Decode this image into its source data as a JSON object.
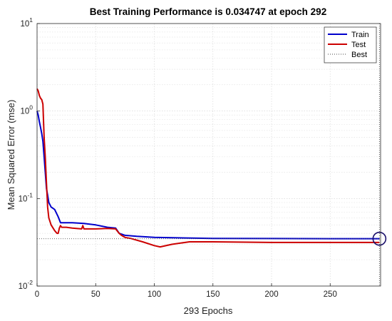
{
  "chart_data": {
    "type": "line",
    "title": "Best Training Performance is 0.034747 at epoch 292",
    "xlabel": "293 Epochs",
    "ylabel": "Mean Squared Error  (mse)",
    "xlim": [
      0,
      293
    ],
    "ylim": [
      0.01,
      10
    ],
    "yscale": "log",
    "grid": true,
    "legend_position": "top-right",
    "x_ticks": [
      0,
      50,
      100,
      150,
      200,
      250
    ],
    "y_ticks": [
      {
        "value": 0.01,
        "base": "10",
        "exp": "-2"
      },
      {
        "value": 0.1,
        "base": "10",
        "exp": "-1"
      },
      {
        "value": 1,
        "base": "10",
        "exp": "0"
      },
      {
        "value": 10,
        "base": "10",
        "exp": "1"
      }
    ],
    "best": {
      "epoch": 292,
      "value": 0.034747
    },
    "series": [
      {
        "name": "Train",
        "color": "#0000cc",
        "points": [
          [
            0,
            1.0
          ],
          [
            1,
            0.9
          ],
          [
            2,
            0.75
          ],
          [
            3,
            0.65
          ],
          [
            4,
            0.55
          ],
          [
            5,
            0.45
          ],
          [
            6,
            0.3
          ],
          [
            7,
            0.2
          ],
          [
            8,
            0.13
          ],
          [
            9,
            0.11
          ],
          [
            10,
            0.09
          ],
          [
            12,
            0.08
          ],
          [
            15,
            0.075
          ],
          [
            18,
            0.062
          ],
          [
            20,
            0.053
          ],
          [
            30,
            0.053
          ],
          [
            40,
            0.052
          ],
          [
            50,
            0.05
          ],
          [
            60,
            0.047
          ],
          [
            67,
            0.046
          ],
          [
            70,
            0.04
          ],
          [
            75,
            0.038
          ],
          [
            85,
            0.037
          ],
          [
            100,
            0.036
          ],
          [
            150,
            0.035
          ],
          [
            200,
            0.0349
          ],
          [
            250,
            0.0348
          ],
          [
            292,
            0.034747
          ]
        ]
      },
      {
        "name": "Test",
        "color": "#cc0000",
        "points": [
          [
            0,
            1.8
          ],
          [
            1,
            1.7
          ],
          [
            2,
            1.5
          ],
          [
            3,
            1.4
          ],
          [
            4,
            1.35
          ],
          [
            5,
            1.2
          ],
          [
            6,
            0.5
          ],
          [
            7,
            0.3
          ],
          [
            8,
            0.15
          ],
          [
            9,
            0.08
          ],
          [
            10,
            0.06
          ],
          [
            12,
            0.05
          ],
          [
            15,
            0.043
          ],
          [
            17,
            0.04
          ],
          [
            18,
            0.04
          ],
          [
            19,
            0.046
          ],
          [
            20,
            0.049
          ],
          [
            21,
            0.047
          ],
          [
            25,
            0.047
          ],
          [
            30,
            0.046
          ],
          [
            38,
            0.045
          ],
          [
            39,
            0.049
          ],
          [
            40,
            0.045
          ],
          [
            50,
            0.045
          ],
          [
            60,
            0.0455
          ],
          [
            67,
            0.045
          ],
          [
            70,
            0.04
          ],
          [
            72,
            0.038
          ],
          [
            75,
            0.036
          ],
          [
            80,
            0.035
          ],
          [
            90,
            0.032
          ],
          [
            100,
            0.029
          ],
          [
            105,
            0.028
          ],
          [
            115,
            0.03
          ],
          [
            130,
            0.032
          ],
          [
            150,
            0.032
          ],
          [
            200,
            0.0315
          ],
          [
            250,
            0.0315
          ],
          [
            292,
            0.0315
          ]
        ]
      },
      {
        "name": "Best",
        "color": "#444444",
        "style": "dotted"
      }
    ]
  }
}
